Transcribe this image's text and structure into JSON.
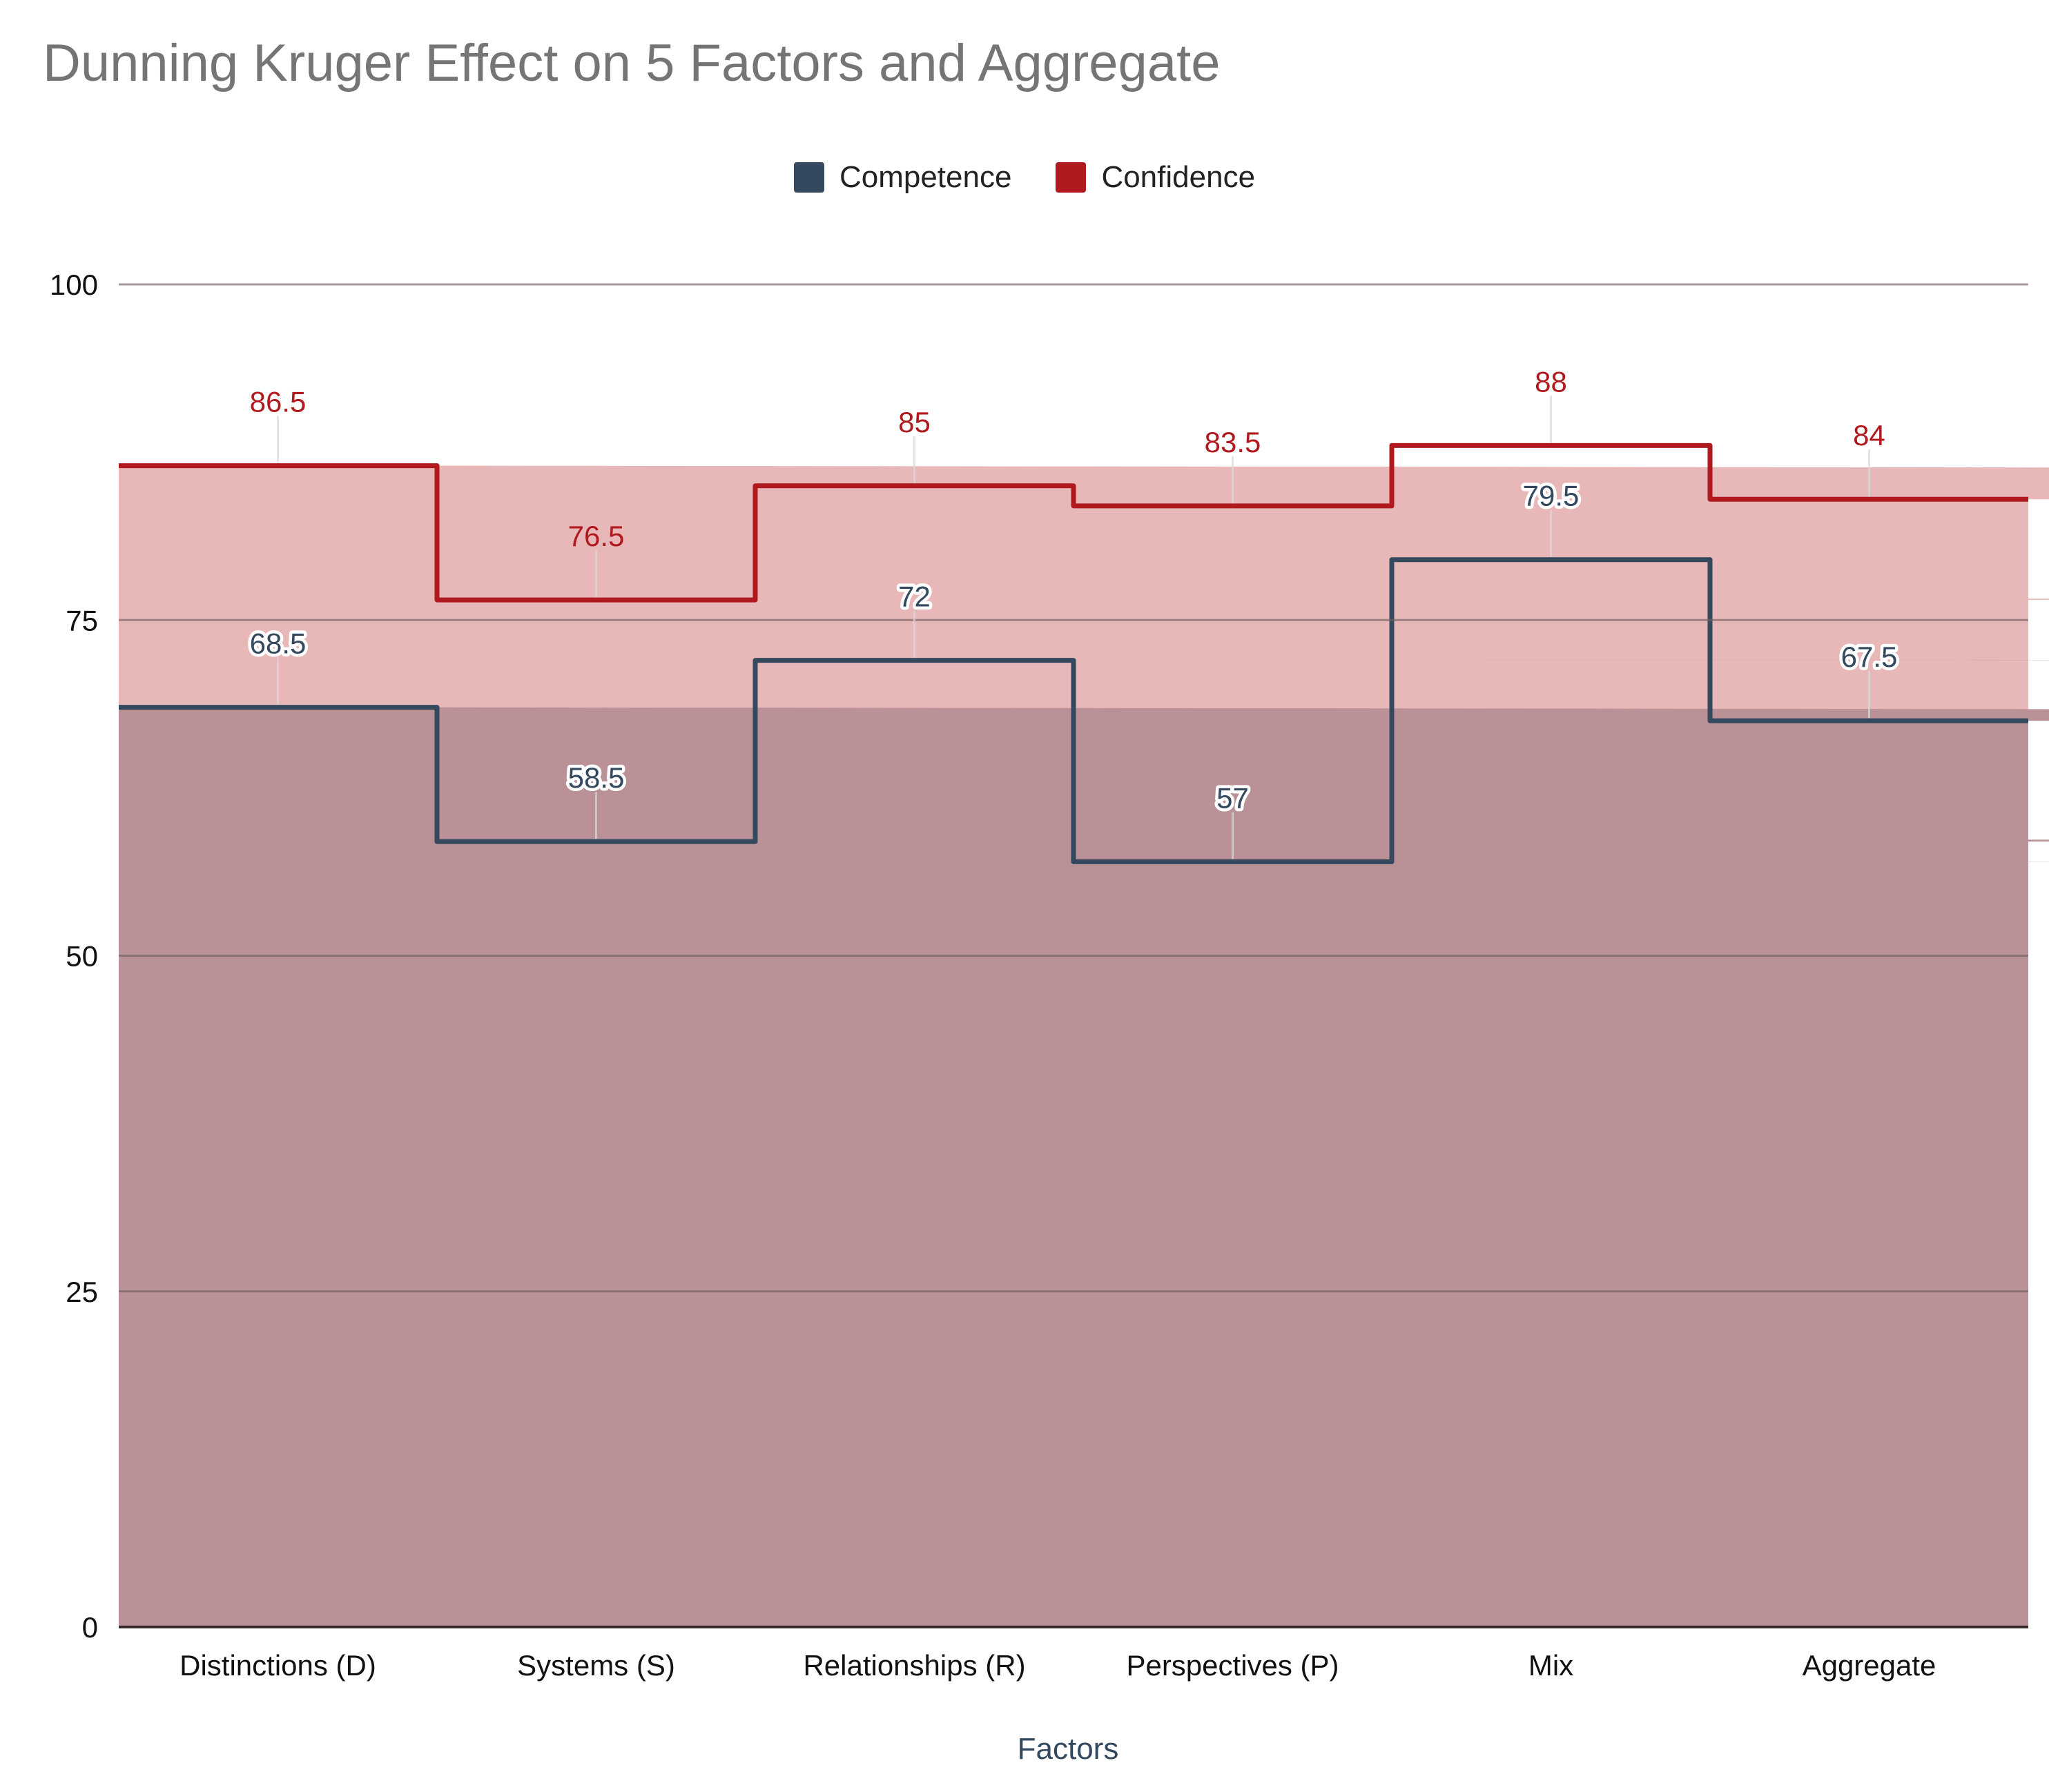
{
  "chart_data": {
    "type": "area",
    "step": true,
    "title": "Dunning Kruger Effect on 5 Factors and Aggregate",
    "xlabel": "Factors",
    "ylabel": "",
    "categories": [
      "Distinctions (D)",
      "Systems (S)",
      "Relationships (R)",
      "Perspectives (P)",
      "Mix",
      "Aggregate"
    ],
    "series": [
      {
        "name": "Competence",
        "values": [
          68.5,
          58.5,
          72,
          57,
          79.5,
          67.5
        ],
        "color": "#34495e",
        "fill": "#ba9196"
      },
      {
        "name": "Confidence",
        "values": [
          86.5,
          76.5,
          85,
          83.5,
          88,
          84
        ],
        "color": "#b0191e",
        "fill": "#e8b8b9"
      }
    ],
    "ylim": [
      0,
      100
    ],
    "yticks": [
      0,
      25,
      50,
      75,
      100
    ],
    "grid": true,
    "legend": "top-center"
  }
}
